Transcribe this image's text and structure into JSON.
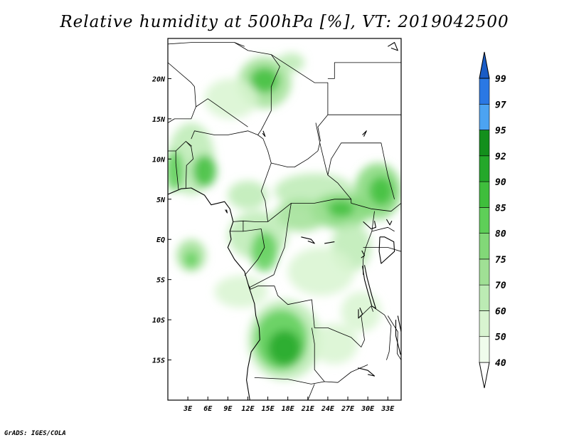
{
  "title": "Relative humidity at 500hPa [%], VT: 2019042500",
  "credit": "GrADS: IGES/COLA",
  "map": {
    "lon_range": [
      0,
      35
    ],
    "lat_range": [
      -20,
      25
    ],
    "lon_ticks": [
      {
        "lon": 3,
        "label": "3E"
      },
      {
        "lon": 6,
        "label": "6E"
      },
      {
        "lon": 9,
        "label": "9E"
      },
      {
        "lon": 12,
        "label": "12E"
      },
      {
        "lon": 15,
        "label": "15E"
      },
      {
        "lon": 18,
        "label": "18E"
      },
      {
        "lon": 21,
        "label": "21E"
      },
      {
        "lon": 24,
        "label": "24E"
      },
      {
        "lon": 27,
        "label": "27E"
      },
      {
        "lon": 30,
        "label": "30E"
      },
      {
        "lon": 33,
        "label": "33E"
      }
    ],
    "lat_ticks": [
      {
        "lat": 20,
        "label": "20N"
      },
      {
        "lat": 15,
        "label": "15N"
      },
      {
        "lat": 10,
        "label": "10N"
      },
      {
        "lat": 5,
        "label": "5N"
      },
      {
        "lat": 0,
        "label": "EQ"
      },
      {
        "lat": -5,
        "label": "5S"
      },
      {
        "lat": -10,
        "label": "10S"
      },
      {
        "lat": -15,
        "label": "15S"
      }
    ]
  },
  "colorbar": {
    "levels": [
      {
        "label": "40",
        "color": "#f0fcec"
      },
      {
        "label": "50",
        "color": "#d8f4d0"
      },
      {
        "label": "60",
        "color": "#bcebb4"
      },
      {
        "label": "70",
        "color": "#a0e095"
      },
      {
        "label": "75",
        "color": "#82d878"
      },
      {
        "label": "80",
        "color": "#5ecf58"
      },
      {
        "label": "85",
        "color": "#3fbe3c"
      },
      {
        "label": "90",
        "color": "#24a82a"
      },
      {
        "label": "92",
        "color": "#138f1c"
      },
      {
        "label": "95",
        "color": "#4ca3f2"
      },
      {
        "label": "97",
        "color": "#2a78e4"
      },
      {
        "label": "99",
        "color": "#1557c2"
      }
    ],
    "below_color": "#ffffff",
    "above_color": "#1a5cc6"
  },
  "humidity_patches": [
    {
      "lon": 14.5,
      "lat": 19.5,
      "rlon": 4,
      "rlat": 3.2,
      "level": 3
    },
    {
      "lon": 14.5,
      "lat": 19.8,
      "rlon": 2.2,
      "rlat": 1.6,
      "level": 6
    },
    {
      "lon": 9.5,
      "lat": 17.5,
      "rlon": 4,
      "rlat": 2.5,
      "level": 1
    },
    {
      "lon": 18.5,
      "lat": 22,
      "rlon": 2,
      "rlat": 1.2,
      "level": 2
    },
    {
      "lon": 3.5,
      "lat": 10,
      "rlon": 3.5,
      "rlat": 4.5,
      "level": 2
    },
    {
      "lon": 5.5,
      "lat": 8.5,
      "rlon": 1.8,
      "rlat": 2,
      "level": 6
    },
    {
      "lon": 1,
      "lat": 8.5,
      "rlon": 1.4,
      "rlat": 2.5,
      "level": 5
    },
    {
      "lon": 12,
      "lat": 5.5,
      "rlon": 3,
      "rlat": 1.8,
      "level": 2
    },
    {
      "lon": 22,
      "lat": 6,
      "rlon": 6,
      "rlat": 2.2,
      "level": 2
    },
    {
      "lon": 26,
      "lat": 3.5,
      "rlon": 4.5,
      "rlat": 2.2,
      "level": 4
    },
    {
      "lon": 26,
      "lat": 3.8,
      "rlon": 2,
      "rlat": 1,
      "level": 6
    },
    {
      "lon": 31.5,
      "lat": 6,
      "rlon": 3.5,
      "rlat": 3.5,
      "level": 4
    },
    {
      "lon": 32,
      "lat": 6,
      "rlon": 1.8,
      "rlat": 1.8,
      "level": 6
    },
    {
      "lon": 20,
      "lat": 3,
      "rlon": 4,
      "rlat": 2,
      "level": 3
    },
    {
      "lon": 13.5,
      "lat": 0.5,
      "rlon": 4.5,
      "rlat": 3,
      "level": 2
    },
    {
      "lon": 14.5,
      "lat": -1.5,
      "rlon": 2,
      "rlat": 2.5,
      "level": 5
    },
    {
      "lon": 3.5,
      "lat": -2,
      "rlon": 2.2,
      "rlat": 2,
      "level": 3
    },
    {
      "lon": 3.5,
      "lat": -2.5,
      "rlon": 1,
      "rlat": 1,
      "level": 5
    },
    {
      "lon": 27.5,
      "lat": -1,
      "rlon": 3,
      "rlat": 3,
      "level": 2
    },
    {
      "lon": 23,
      "lat": -4,
      "rlon": 5,
      "rlat": 3,
      "level": 1
    },
    {
      "lon": 11,
      "lat": -6.5,
      "rlon": 4,
      "rlat": 2,
      "level": 1
    },
    {
      "lon": 17.5,
      "lat": -12.5,
      "rlon": 5.5,
      "rlat": 5,
      "level": 2
    },
    {
      "lon": 17,
      "lat": -12.5,
      "rlon": 4,
      "rlat": 3.8,
      "level": 5
    },
    {
      "lon": 17.5,
      "lat": -13.5,
      "rlon": 2.5,
      "rlat": 2.2,
      "level": 7
    },
    {
      "lon": 25,
      "lat": -13,
      "rlon": 3.5,
      "rlat": 2.5,
      "level": 1
    },
    {
      "lon": 29,
      "lat": -9,
      "rlon": 3,
      "rlat": 2.5,
      "level": 1
    }
  ],
  "boundaries": [
    [
      [
        0,
        24.3
      ],
      [
        3.5,
        24.5
      ],
      [
        10,
        24.5
      ],
      [
        12,
        23.5
      ],
      [
        15.5,
        23
      ]
    ],
    [
      [
        10,
        24.5
      ],
      [
        11.5,
        24
      ]
    ],
    [
      [
        15.5,
        23
      ],
      [
        16.8,
        21.5
      ],
      [
        16,
        20
      ],
      [
        15.5,
        19
      ],
      [
        15.5,
        16
      ],
      [
        14,
        13.6
      ],
      [
        13.5,
        13
      ]
    ],
    [
      [
        15.5,
        23
      ],
      [
        22,
        19.5
      ],
      [
        24,
        19.5
      ],
      [
        24,
        15.5
      ]
    ],
    [
      [
        24,
        20
      ],
      [
        25,
        20
      ],
      [
        25,
        22
      ],
      [
        35,
        22
      ]
    ],
    [
      [
        4,
        19
      ],
      [
        3.5,
        19.5
      ],
      [
        0,
        22
      ]
    ],
    [
      [
        4,
        19
      ],
      [
        4.2,
        16.5
      ],
      [
        3.5,
        15
      ],
      [
        1,
        15
      ],
      [
        0,
        14.5
      ]
    ],
    [
      [
        4.2,
        16.5
      ],
      [
        6,
        17.5
      ],
      [
        12,
        14
      ]
    ],
    [
      [
        3.5,
        12.5
      ],
      [
        4,
        13.5
      ],
      [
        7,
        13
      ],
      [
        9,
        13
      ],
      [
        12,
        13.5
      ],
      [
        13.5,
        13
      ]
    ],
    [
      [
        0,
        11
      ],
      [
        1.2,
        11
      ],
      [
        2.7,
        12.2
      ],
      [
        3.5,
        11.5
      ],
      [
        3.8,
        10
      ],
      [
        2.8,
        9.2
      ],
      [
        2.7,
        6.4
      ]
    ],
    [
      [
        1.2,
        11
      ],
      [
        1.2,
        9.5
      ],
      [
        1.6,
        6.2
      ]
    ],
    [
      [
        2.7,
        12.2
      ],
      [
        3.6,
        11.6
      ]
    ],
    [
      [
        13.5,
        13
      ],
      [
        14.3,
        12.5
      ],
      [
        15,
        11
      ],
      [
        15.5,
        9.5
      ],
      [
        14,
        6
      ],
      [
        14.6,
        4.8
      ],
      [
        15,
        2.2
      ]
    ],
    [
      [
        15.5,
        9.5
      ],
      [
        18,
        9
      ],
      [
        19,
        9
      ],
      [
        21,
        10
      ],
      [
        22.5,
        11
      ],
      [
        22.8,
        12
      ],
      [
        23.8,
        8.6
      ],
      [
        24,
        8
      ],
      [
        25.5,
        7
      ],
      [
        27.5,
        5
      ],
      [
        27.5,
        4.5
      ]
    ],
    [
      [
        24,
        15.5
      ],
      [
        22.5,
        14
      ],
      [
        22.9,
        12.2
      ]
    ],
    [
      [
        24,
        15.5
      ],
      [
        36,
        15.5
      ]
    ],
    [
      [
        22.8,
        12
      ],
      [
        22.2,
        14.5
      ]
    ],
    [
      [
        24,
        8
      ],
      [
        24.5,
        10
      ],
      [
        26,
        12
      ],
      [
        32,
        12
      ],
      [
        33,
        8
      ],
      [
        34,
        5
      ]
    ],
    [
      [
        27.5,
        4.5
      ],
      [
        30.5,
        3.8
      ],
      [
        33.5,
        3.5
      ],
      [
        35,
        4.5
      ]
    ],
    [
      [
        15,
        2.2
      ],
      [
        17,
        3.5
      ],
      [
        18.5,
        4.5
      ],
      [
        22,
        4.5
      ],
      [
        25,
        5
      ],
      [
        27.5,
        5
      ]
    ],
    [
      [
        9.8,
        2.2
      ],
      [
        11.3,
        2.3
      ],
      [
        13,
        2.2
      ],
      [
        15,
        2.2
      ]
    ],
    [
      [
        11.3,
        2.3
      ],
      [
        11.3,
        1
      ],
      [
        9.3,
        1
      ]
    ],
    [
      [
        11.3,
        1
      ],
      [
        14,
        1.3
      ],
      [
        14.5,
        -1
      ],
      [
        13.5,
        -2.5
      ],
      [
        12,
        -4
      ],
      [
        11.5,
        -4.5
      ]
    ],
    [
      [
        18.5,
        4.5
      ],
      [
        18,
        2
      ],
      [
        17.5,
        -1
      ],
      [
        16.5,
        -3
      ],
      [
        15.9,
        -4.4
      ],
      [
        12.2,
        -6
      ]
    ],
    [
      [
        31,
        3.5
      ],
      [
        30.6,
        1
      ],
      [
        29.7,
        -1
      ],
      [
        29.3,
        -2.5
      ],
      [
        29.3,
        -4.4
      ]
    ],
    [
      [
        30.6,
        1
      ],
      [
        33,
        1.5
      ],
      [
        34,
        1
      ]
    ],
    [
      [
        29.3,
        -1
      ],
      [
        33,
        -1
      ],
      [
        35,
        -1.5
      ]
    ],
    [
      [
        12,
        -5.5
      ],
      [
        12.4,
        -6.2
      ],
      [
        13.5,
        -5.8
      ],
      [
        16,
        -5.8
      ],
      [
        16.5,
        -7
      ],
      [
        18,
        -8.1
      ],
      [
        21.6,
        -7.5
      ],
      [
        22,
        -11
      ],
      [
        24,
        -11
      ],
      [
        26,
        -11.7
      ],
      [
        27.5,
        -12.2
      ],
      [
        29,
        -13.4
      ],
      [
        29.5,
        -12.5
      ],
      [
        29,
        -9.5
      ],
      [
        30.5,
        -8.3
      ]
    ],
    [
      [
        13,
        -17.2
      ],
      [
        18,
        -17.4
      ],
      [
        21.5,
        -18
      ],
      [
        23.5,
        -17.7
      ],
      [
        25.5,
        -17.8
      ],
      [
        27.5,
        -16.5
      ],
      [
        30,
        -15.6
      ]
    ],
    [
      [
        21.6,
        -11
      ],
      [
        22,
        -13
      ],
      [
        22,
        -16.2
      ],
      [
        23.5,
        -17.7
      ]
    ],
    [
      [
        30.6,
        -8.3
      ],
      [
        32.5,
        -9.4
      ],
      [
        33.5,
        -10.8
      ],
      [
        33.2,
        -14
      ],
      [
        32.8,
        -15
      ]
    ],
    [
      [
        33,
        -9.5
      ],
      [
        34.5,
        -11.5
      ],
      [
        34.4,
        -14.2
      ],
      [
        35,
        -15
      ]
    ],
    [
      [
        22,
        -18
      ],
      [
        21,
        -20
      ]
    ],
    [
      [
        30.5,
        -8.3
      ],
      [
        30.8,
        -9
      ]
    ]
  ],
  "coastlines": [
    [
      [
        0,
        5.6
      ],
      [
        2,
        6.3
      ],
      [
        3.5,
        6.4
      ],
      [
        5.5,
        5.5
      ],
      [
        6.5,
        4.3
      ],
      [
        8.5,
        4.7
      ],
      [
        9.3,
        3.8
      ],
      [
        9.8,
        2.2
      ],
      [
        9.3,
        1
      ],
      [
        9.5,
        0
      ],
      [
        9,
        -1
      ],
      [
        10,
        -2.5
      ],
      [
        11.5,
        -4
      ],
      [
        12.2,
        -6
      ],
      [
        13,
        -8
      ],
      [
        13.2,
        -9.5
      ],
      [
        13.7,
        -11
      ],
      [
        13.8,
        -12.5
      ],
      [
        12.5,
        -14
      ],
      [
        12,
        -16
      ],
      [
        11.8,
        -17.5
      ],
      [
        12.3,
        -20
      ]
    ],
    [
      [
        8.6,
        3.7
      ],
      [
        8.9,
        3.3
      ],
      [
        8.8,
        3.7
      ]
    ],
    [
      [
        29.2,
        -3.3
      ],
      [
        29.5,
        -5
      ],
      [
        30,
        -6.5
      ],
      [
        30.6,
        -8.3
      ],
      [
        31.2,
        -8.6
      ],
      [
        30.6,
        -7
      ],
      [
        29.9,
        -4.8
      ],
      [
        29.5,
        -3.2
      ]
    ],
    [
      [
        28.8,
        -8.5
      ],
      [
        29.2,
        -9.3
      ],
      [
        28.6,
        -9.8
      ],
      [
        28.6,
        -8.7
      ]
    ],
    [
      [
        29.1,
        -1.4
      ],
      [
        29.5,
        -2
      ],
      [
        29,
        -2.3
      ]
    ],
    [
      [
        29.3,
        2.2
      ],
      [
        30.5,
        1.3
      ],
      [
        31.2,
        1.5
      ],
      [
        31,
        2.3
      ]
    ],
    [
      [
        31.8,
        0.3
      ],
      [
        32.5,
        0.3
      ],
      [
        33.9,
        -0.3
      ],
      [
        34,
        -1.5
      ],
      [
        32,
        -3
      ],
      [
        31.7,
        -1.5
      ],
      [
        31.8,
        0.3
      ]
    ],
    [
      [
        32.8,
        2.5
      ],
      [
        33.3,
        1.8
      ],
      [
        33.6,
        2.3
      ]
    ],
    [
      [
        34.5,
        -9.5
      ],
      [
        35,
        -11.5
      ],
      [
        35.5,
        -13.5
      ],
      [
        34.9,
        -14.3
      ],
      [
        34.2,
        -12
      ],
      [
        34.2,
        -10
      ]
    ],
    [
      [
        28.5,
        -16
      ],
      [
        30,
        -16.3
      ],
      [
        31,
        -17
      ],
      [
        30,
        -16.8
      ]
    ],
    [
      [
        29.2,
        13
      ],
      [
        29.8,
        13.5
      ],
      [
        29.4,
        12.8
      ]
    ],
    [
      [
        14.2,
        13.2
      ],
      [
        14.6,
        12.8
      ],
      [
        14.3,
        13.5
      ]
    ],
    [
      [
        33,
        24
      ],
      [
        34,
        24.5
      ],
      [
        34.5,
        23.5
      ],
      [
        33.5,
        23.8
      ]
    ],
    [
      [
        20,
        0.3
      ],
      [
        21.5,
        0
      ],
      [
        22,
        -0.5
      ],
      [
        21,
        -0.2
      ]
    ],
    [
      [
        23.5,
        -0.5
      ],
      [
        25,
        -0.3
      ]
    ]
  ]
}
